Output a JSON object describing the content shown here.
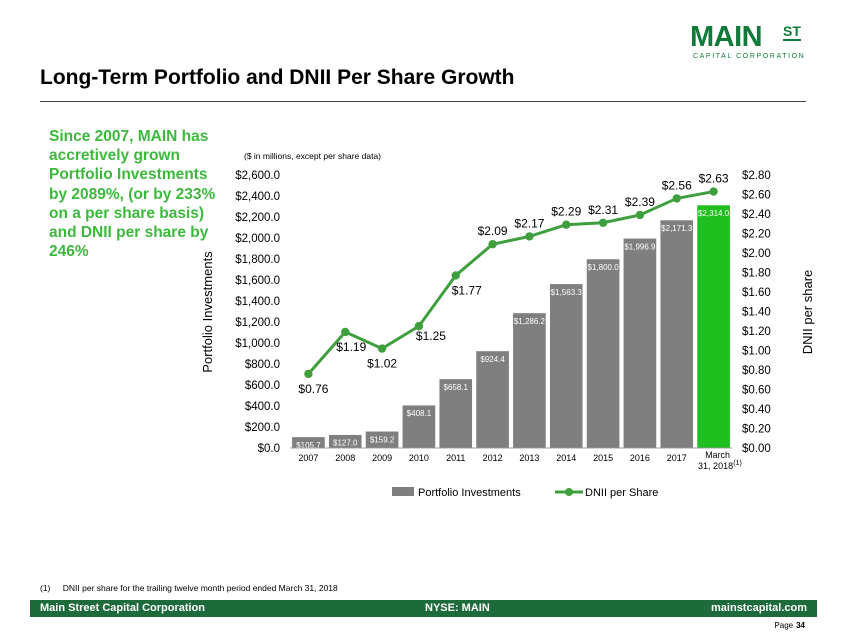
{
  "logo": {
    "main": "MAIN",
    "st": "ST",
    "sub": "CAPITAL CORPORATION"
  },
  "page_title": "Long-Term Portfolio and DNII Per Share Growth",
  "side_text": "Since 2007, MAIN has accretively grown Portfolio Investments by 2089%, (or by 233% on a per share basis) and DNII per share by 246%",
  "footnote": {
    "number": "(1)",
    "text": "DNII per share for the trailing twelve month period ended March 31, 2018"
  },
  "footer": {
    "left": "Main Street Capital Corporation",
    "middle": "NYSE: MAIN",
    "right": "mainstcapital.com"
  },
  "page": {
    "label": "Page",
    "number": "34"
  },
  "colors": {
    "brand_green": "#0f7a3a",
    "footer_green": "#1d6b3a",
    "text_green": "#3cb93c",
    "bar_gray": "#7f7f7f",
    "bar_highlight": "#1fbf1f",
    "line_green": "#3f9f3f"
  },
  "chart_data": {
    "type": "bar",
    "subtitle": "($ in millions, except per share data)",
    "categories": [
      "2007",
      "2008",
      "2009",
      "2010",
      "2011",
      "2012",
      "2013",
      "2014",
      "2015",
      "2016",
      "2017",
      "March 31, 2018"
    ],
    "last_category_superscript": "(1)",
    "series": [
      {
        "name": "Portfolio Investments",
        "type": "bar",
        "axis": "left",
        "values": [
          105.7,
          127.0,
          159.2,
          408.1,
          658.1,
          924.4,
          1286.2,
          1563.3,
          1800.0,
          1996.9,
          2171.3,
          2314.0
        ],
        "labels": [
          "$105.7",
          "$127.0",
          "$159.2",
          "$408.1",
          "$658.1",
          "$924.4",
          "$1,286.2",
          "$1,563.3",
          "$1,800.0",
          "$1,996.9",
          "$2,171.3",
          "$2,314.0"
        ]
      },
      {
        "name": "DNII per Share",
        "type": "line",
        "axis": "right",
        "values": [
          0.76,
          1.19,
          1.02,
          1.25,
          1.77,
          2.09,
          2.17,
          2.29,
          2.31,
          2.39,
          2.56,
          2.63
        ],
        "labels": [
          "$0.76",
          "$1.19",
          "$1.02",
          "$1.25",
          "$1.77",
          "$2.09",
          "$2.17",
          "$2.29",
          "$2.31",
          "$2.39",
          "$2.56",
          "$2.63"
        ]
      }
    ],
    "left_axis": {
      "label": "Portfolio Investments",
      "ylim": [
        0,
        2600
      ],
      "ticks": [
        0,
        200,
        400,
        600,
        800,
        1000,
        1200,
        1400,
        1600,
        1800,
        2000,
        2200,
        2400,
        2600
      ],
      "tick_labels": [
        "$0.0",
        "$200.0",
        "$400.0",
        "$600.0",
        "$800.0",
        "$1,000.0",
        "$1,200.0",
        "$1,400.0",
        "$1,600.0",
        "$1,800.0",
        "$2,000.0",
        "$2,200.0",
        "$2,400.0",
        "$2,600.0"
      ]
    },
    "right_axis": {
      "label": "DNII per share",
      "ylim": [
        0,
        2.8
      ],
      "ticks": [
        0,
        0.2,
        0.4,
        0.6,
        0.8,
        1.0,
        1.2,
        1.4,
        1.6,
        1.8,
        2.0,
        2.2,
        2.4,
        2.6,
        2.8
      ],
      "tick_labels": [
        "$0.00",
        "$0.20",
        "$0.40",
        "$0.60",
        "$0.80",
        "$1.00",
        "$1.20",
        "$1.40",
        "$1.60",
        "$1.80",
        "$2.00",
        "$2.20",
        "$2.40",
        "$2.60",
        "$2.80"
      ]
    },
    "highlight_last_bar": true,
    "grid": false,
    "legend_position": "bottom"
  }
}
